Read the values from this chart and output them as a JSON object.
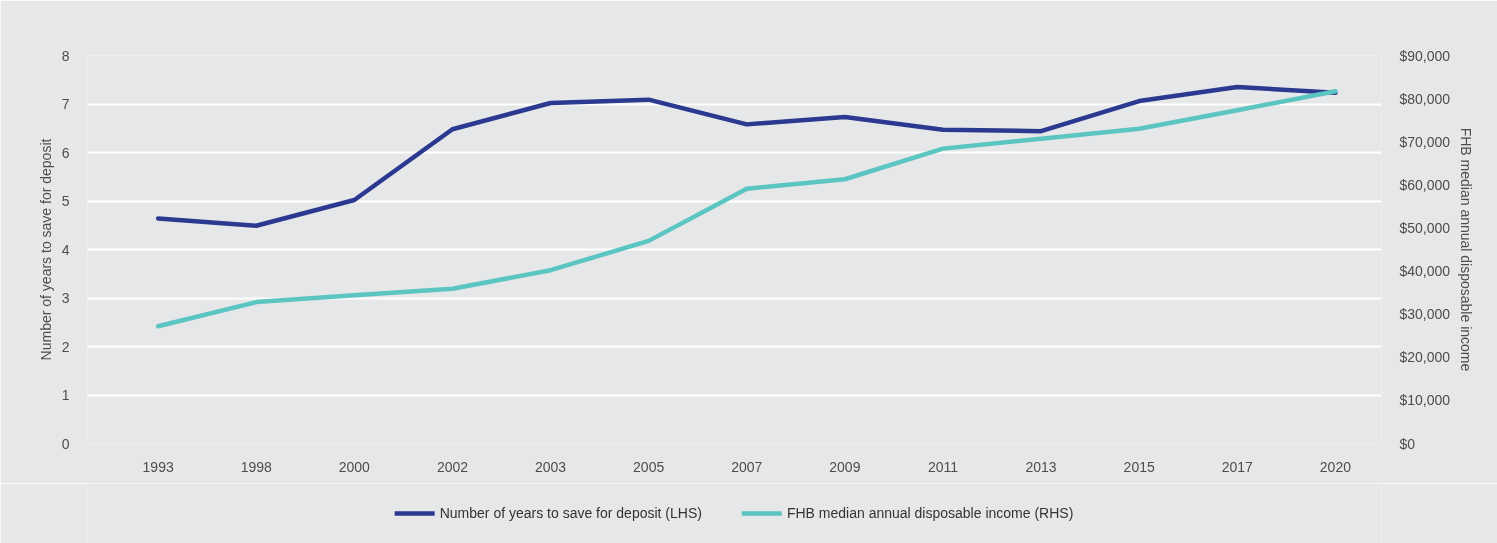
{
  "chart_data": {
    "type": "line",
    "categories": [
      "1993",
      "1998",
      "2000",
      "2002",
      "2003",
      "2005",
      "2007",
      "2009",
      "2011",
      "2013",
      "2015",
      "2017",
      "2020"
    ],
    "ylabel": "Number of years to save for deposit",
    "y2label": "FHB median annual disposable income",
    "ylim": [
      0,
      8
    ],
    "yticks": [
      0,
      1,
      2,
      3,
      4,
      5,
      6,
      7,
      8
    ],
    "y2lim": [
      0,
      90000
    ],
    "y2ticks": [
      {
        "value": 0,
        "label": "$0"
      },
      {
        "value": 10000,
        "label": "$10,000"
      },
      {
        "value": 20000,
        "label": "$20,000"
      },
      {
        "value": 30000,
        "label": "$30,000"
      },
      {
        "value": 40000,
        "label": "$40,000"
      },
      {
        "value": 50000,
        "label": "$50,000"
      },
      {
        "value": 60000,
        "label": "$60,000"
      },
      {
        "value": 70000,
        "label": "$70,000"
      },
      {
        "value": 80000,
        "label": "$80,000"
      },
      {
        "value": 90000,
        "label": "$90,000"
      }
    ],
    "grid": "y",
    "legend": "bottom",
    "series": [
      {
        "name": "Number of years to save for deposit (LHS)",
        "color": "#2b3990",
        "values": [
          4.64,
          4.49,
          5.02,
          6.48,
          7.02,
          7.09,
          6.58,
          6.73,
          6.47,
          6.44,
          7.06,
          7.35,
          7.23
        ]
      },
      {
        "name": "FHB median annual disposable income (RHS)",
        "color": "#5bc5c2",
        "axis": "y2",
        "values": [
          27200,
          32800,
          34400,
          35900,
          40200,
          47000,
          59100,
          61300,
          68400,
          70700,
          73000,
          77300,
          81700
        ]
      }
    ]
  }
}
